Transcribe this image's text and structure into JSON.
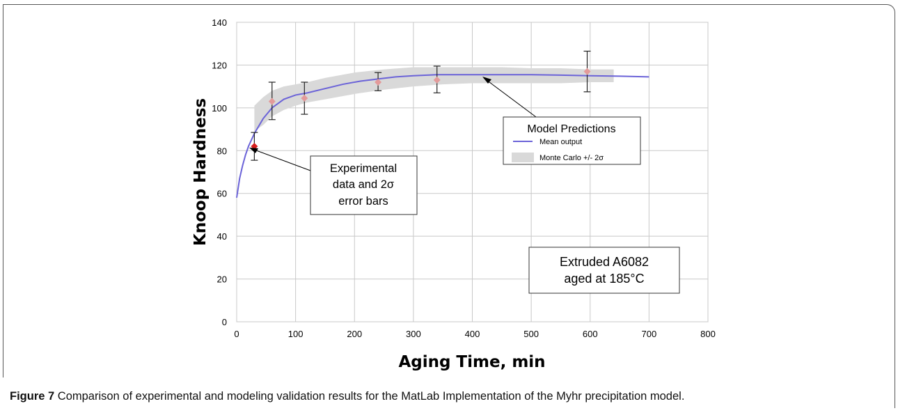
{
  "chart_data": {
    "type": "line",
    "xlabel": "Aging Time, min",
    "ylabel": "Knoop Hardness",
    "xlim": [
      0,
      800
    ],
    "ylim": [
      0,
      140
    ],
    "xticks": [
      "0",
      "100",
      "200",
      "300",
      "400",
      "500",
      "600",
      "700",
      "800"
    ],
    "yticks": [
      "0",
      "20",
      "40",
      "60",
      "80",
      "100",
      "120",
      "140"
    ],
    "grid": true,
    "series": [
      {
        "name": "Mean output",
        "color": "#6b63d8",
        "x": [
          0,
          5,
          10,
          15,
          20,
          30,
          45,
          60,
          80,
          100,
          120,
          150,
          180,
          210,
          240,
          270,
          300,
          340,
          400,
          450,
          500,
          550,
          600,
          650,
          700
        ],
        "y": [
          58,
          67,
          73,
          78,
          82,
          88,
          95,
          100,
          104,
          106,
          107,
          109,
          111,
          112.5,
          113.5,
          114.5,
          115,
          115.5,
          115.5,
          115.5,
          115.5,
          115.3,
          115,
          114.8,
          114.5
        ]
      },
      {
        "name": "Monte Carlo +/- 2σ",
        "color": "#d9d9d9",
        "x": [
          30,
          45,
          60,
          80,
          100,
          120,
          150,
          200,
          250,
          300,
          350,
          400,
          450,
          500,
          550,
          600,
          640
        ],
        "upper": [
          101,
          105,
          108,
          110,
          111,
          112,
          114,
          116.5,
          118,
          119,
          119,
          119,
          119,
          118.5,
          118.5,
          118,
          118
        ],
        "lower": [
          89,
          92,
          96,
          99,
          101,
          102.5,
          104,
          106.5,
          108.5,
          110,
          111,
          111.5,
          111.5,
          111.5,
          111.5,
          112,
          112
        ]
      }
    ],
    "experimental": {
      "name": "Experimental data",
      "x": [
        30,
        60,
        115,
        240,
        340,
        595
      ],
      "y": [
        82,
        103,
        104.5,
        112,
        113,
        117
      ],
      "err_low": [
        75.5,
        94.5,
        97,
        108,
        107,
        107.5
      ],
      "err_high": [
        88.5,
        112,
        112,
        116.5,
        119.5,
        126.5
      ]
    },
    "annotations": {
      "experimental_label": [
        "Experimental",
        "data and 2σ",
        "error bars"
      ],
      "model_title": "Model Predictions",
      "legend_mean": "Mean output",
      "legend_band": "Monte Carlo +/- 2σ",
      "material_label": [
        "Extruded A6082",
        "aged at 185°C"
      ]
    }
  },
  "caption": {
    "label": "Figure 7",
    "text": " Comparison of experimental and modeling validation results for the MatLab Implementation of the Myhr precipitation model."
  }
}
